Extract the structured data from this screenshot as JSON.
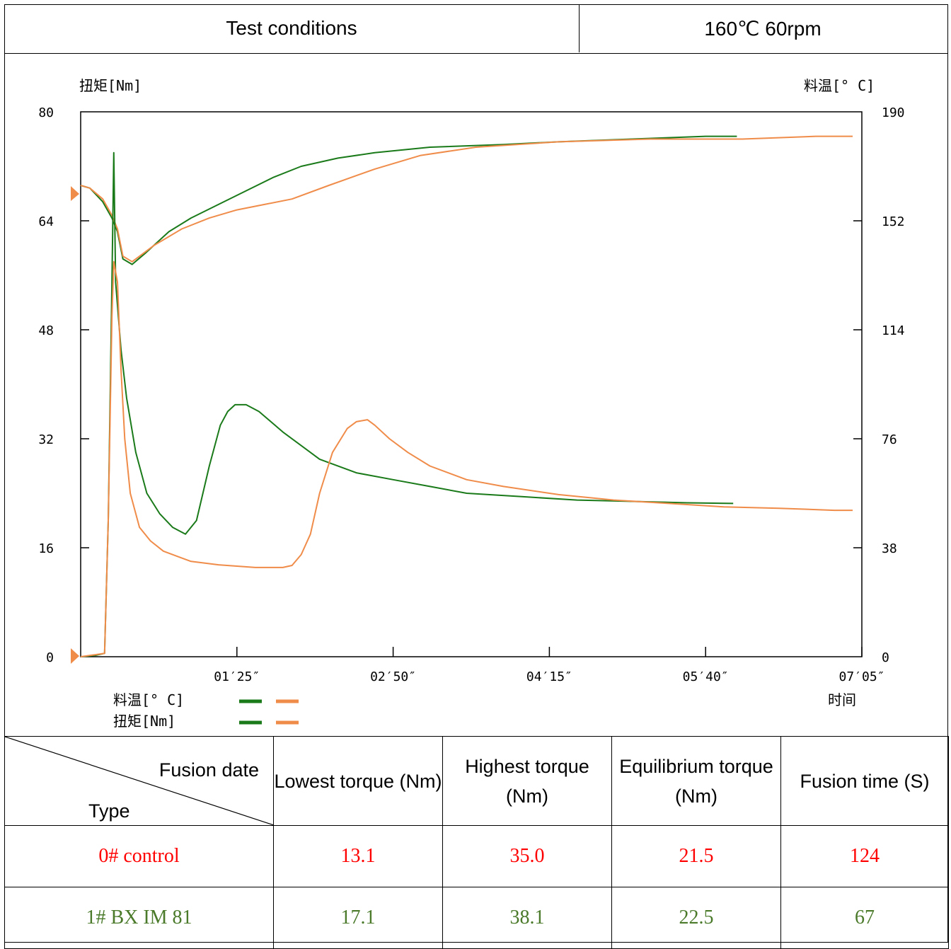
{
  "header": {
    "conditions_label": "Test conditions",
    "conditions_value": "160℃  60rpm"
  },
  "chart_data": {
    "type": "line",
    "y_left_label": "扭矩[Nm]",
    "y_right_label": "料温[° C]",
    "x_label": "时间",
    "y_left_ticks": [
      "80",
      "64",
      "48",
      "32",
      "16",
      "0"
    ],
    "y_right_ticks": [
      "190",
      "152",
      "114",
      "76",
      "38",
      "0"
    ],
    "x_ticks": [
      "01′25″",
      "02′50″",
      "04′15″",
      "05′40″",
      "07′05″"
    ],
    "x_lim_seconds": [
      0,
      425
    ],
    "y_left_lim": [
      0,
      80
    ],
    "y_right_lim": [
      0,
      200
    ],
    "legend": {
      "temp_label": "料温[° C]",
      "torque_label": "扭矩[Nm]"
    },
    "colors": {
      "green": "#1a7a1a",
      "orange": "#f08c4a"
    },
    "series": [
      {
        "kind": "temperature",
        "color": "green",
        "points": [
          [
            0,
            173
          ],
          [
            5,
            172
          ],
          [
            12,
            167
          ],
          [
            17,
            161
          ],
          [
            20,
            156
          ],
          [
            23,
            146
          ],
          [
            28,
            144
          ],
          [
            35,
            148
          ],
          [
            48,
            156
          ],
          [
            60,
            161
          ],
          [
            75,
            166
          ],
          [
            90,
            171
          ],
          [
            105,
            176
          ],
          [
            120,
            180
          ],
          [
            140,
            183
          ],
          [
            160,
            185
          ],
          [
            190,
            187
          ],
          [
            230,
            188
          ],
          [
            260,
            189
          ],
          [
            300,
            190
          ],
          [
            340,
            191
          ],
          [
            357,
            191
          ]
        ]
      },
      {
        "kind": "temperature",
        "color": "orange",
        "points": [
          [
            0,
            173
          ],
          [
            5,
            172
          ],
          [
            12,
            168
          ],
          [
            17,
            162
          ],
          [
            20,
            157
          ],
          [
            23,
            147
          ],
          [
            28,
            145
          ],
          [
            40,
            151
          ],
          [
            55,
            157
          ],
          [
            70,
            161
          ],
          [
            85,
            164
          ],
          [
            100,
            166
          ],
          [
            115,
            168
          ],
          [
            135,
            173
          ],
          [
            160,
            179
          ],
          [
            185,
            184
          ],
          [
            215,
            187
          ],
          [
            260,
            189
          ],
          [
            310,
            190
          ],
          [
            360,
            190
          ],
          [
            400,
            191
          ],
          [
            420,
            191
          ]
        ]
      },
      {
        "kind": "torque",
        "color": "green",
        "points": [
          [
            0,
            0
          ],
          [
            8,
            0.2
          ],
          [
            13,
            0.5
          ],
          [
            15,
            20
          ],
          [
            17,
            55
          ],
          [
            18,
            74
          ],
          [
            19,
            55
          ],
          [
            22,
            45
          ],
          [
            25,
            38
          ],
          [
            30,
            30
          ],
          [
            36,
            24
          ],
          [
            43,
            21
          ],
          [
            50,
            19
          ],
          [
            57,
            18
          ],
          [
            60,
            19
          ],
          [
            63,
            20
          ],
          [
            70,
            28
          ],
          [
            76,
            34
          ],
          [
            80,
            36
          ],
          [
            84,
            37
          ],
          [
            90,
            37
          ],
          [
            97,
            36
          ],
          [
            110,
            33
          ],
          [
            130,
            29
          ],
          [
            150,
            27
          ],
          [
            170,
            26
          ],
          [
            190,
            25
          ],
          [
            210,
            24
          ],
          [
            240,
            23.5
          ],
          [
            270,
            23
          ],
          [
            300,
            22.8
          ],
          [
            330,
            22.6
          ],
          [
            355,
            22.5
          ]
        ]
      },
      {
        "kind": "torque",
        "color": "orange",
        "points": [
          [
            0,
            0
          ],
          [
            8,
            0.3
          ],
          [
            13,
            0.5
          ],
          [
            15,
            20
          ],
          [
            17,
            50
          ],
          [
            18,
            58
          ],
          [
            20,
            55
          ],
          [
            22,
            42
          ],
          [
            24,
            32
          ],
          [
            27,
            24
          ],
          [
            32,
            19
          ],
          [
            38,
            17
          ],
          [
            45,
            15.5
          ],
          [
            60,
            14
          ],
          [
            75,
            13.5
          ],
          [
            95,
            13.1
          ],
          [
            110,
            13.1
          ],
          [
            115,
            13.4
          ],
          [
            120,
            15
          ],
          [
            125,
            18
          ],
          [
            130,
            24
          ],
          [
            137,
            30
          ],
          [
            145,
            33.5
          ],
          [
            150,
            34.5
          ],
          [
            156,
            34.8
          ],
          [
            160,
            34
          ],
          [
            168,
            32
          ],
          [
            178,
            30
          ],
          [
            190,
            28
          ],
          [
            210,
            26
          ],
          [
            230,
            25
          ],
          [
            260,
            23.8
          ],
          [
            290,
            23
          ],
          [
            320,
            22.5
          ],
          [
            350,
            22
          ],
          [
            380,
            21.8
          ],
          [
            410,
            21.5
          ],
          [
            420,
            21.5
          ]
        ]
      }
    ]
  },
  "table": {
    "corner_top": "Fusion date",
    "corner_bottom": "Type",
    "headers": [
      "Lowest torque (Nm)",
      "Highest torque (Nm)",
      "Equilibrium torque (Nm)",
      "Fusion time (S)"
    ],
    "rows": [
      {
        "type": "0# control",
        "color": "#ff0000",
        "values": [
          "13.1",
          "35.0",
          "21.5",
          "124"
        ]
      },
      {
        "type": "1# BX IM 81",
        "color": "#4a7a2a",
        "values": [
          "17.1",
          "38.1",
          "22.5",
          "67"
        ]
      }
    ]
  }
}
